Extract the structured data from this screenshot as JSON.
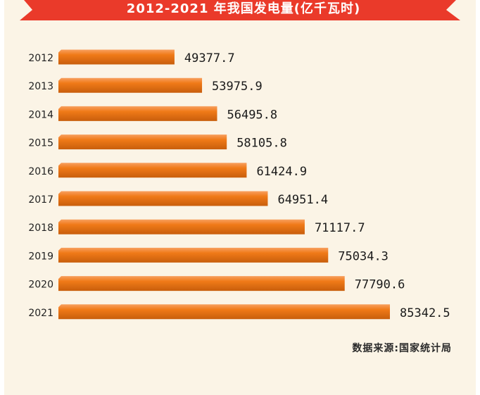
{
  "title": "2012-2021 年我国发电量(亿千瓦时)",
  "source": "数据来源:国家统计局",
  "colors": {
    "banner": "#ea3a2a",
    "bar_top": "#f8a060",
    "bar": "#f07a18",
    "bar_bottom": "#c85e0c",
    "background": "#fbf4e6"
  },
  "chart_data": {
    "type": "bar",
    "orientation": "horizontal",
    "title": "2012-2021 年我国发电量(亿千瓦时)",
    "categories": [
      "2012",
      "2013",
      "2014",
      "2015",
      "2016",
      "2017",
      "2018",
      "2019",
      "2020",
      "2021"
    ],
    "values": [
      49377.7,
      53975.9,
      56495.8,
      58105.8,
      61424.9,
      64951.4,
      71117.7,
      75034.3,
      77790.6,
      85342.5
    ],
    "value_labels": [
      "49377.7",
      "53975.9",
      "56495.8",
      "58105.8",
      "61424.9",
      "64951.4",
      "71117.7",
      "75034.3",
      "77790.6",
      "85342.5"
    ],
    "xlim": [
      0,
      85342.5
    ],
    "grid": false,
    "legend": "none"
  }
}
